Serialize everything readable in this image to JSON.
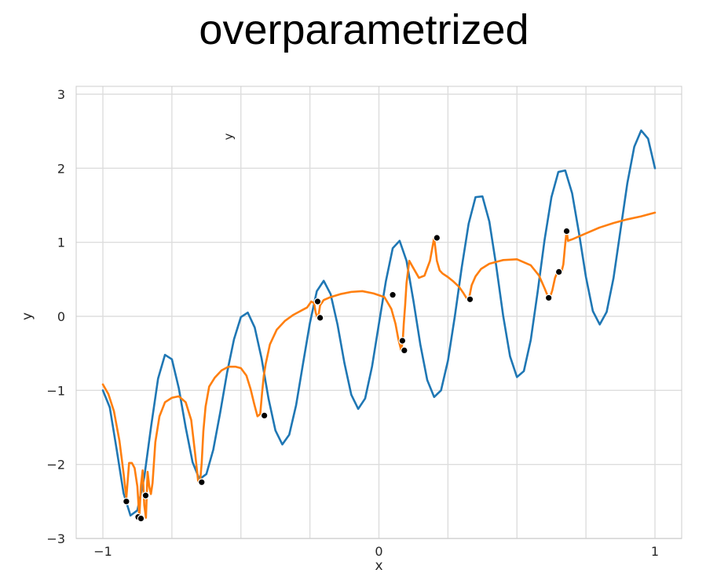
{
  "title": "overparametrized",
  "stray_label": "y",
  "chart_data": {
    "type": "line",
    "xlabel": "x",
    "ylabel": "y",
    "xlim": [
      -1.0,
      1.0
    ],
    "ylim": [
      -3,
      3
    ],
    "xticks": [
      -1,
      0,
      1
    ],
    "xtick_labels": [
      "−1",
      "0",
      "1"
    ],
    "yticks": [
      -3,
      -2,
      -1,
      0,
      1,
      2,
      3
    ],
    "ytick_labels": [
      "−3",
      "−2",
      "−1",
      "0",
      "1",
      "2",
      "3"
    ],
    "grid": true,
    "series": [
      {
        "kind": "line",
        "color": "#1f77b4",
        "x": [
          -1.0,
          -0.975,
          -0.95,
          -0.925,
          -0.9,
          -0.875,
          -0.85,
          -0.825,
          -0.8,
          -0.775,
          -0.75,
          -0.725,
          -0.7,
          -0.675,
          -0.65,
          -0.625,
          -0.6,
          -0.575,
          -0.55,
          -0.525,
          -0.5,
          -0.475,
          -0.45,
          -0.425,
          -0.4,
          -0.375,
          -0.35,
          -0.325,
          -0.3,
          -0.275,
          -0.25,
          -0.225,
          -0.2,
          -0.175,
          -0.15,
          -0.125,
          -0.1,
          -0.075,
          -0.05,
          -0.025,
          0.0,
          0.025,
          0.05,
          0.075,
          0.1,
          0.125,
          0.15,
          0.175,
          0.2,
          0.225,
          0.25,
          0.275,
          0.3,
          0.325,
          0.35,
          0.375,
          0.4,
          0.425,
          0.45,
          0.475,
          0.5,
          0.525,
          0.55,
          0.575,
          0.6,
          0.625,
          0.65,
          0.675,
          0.7,
          0.725,
          0.75,
          0.775,
          0.8,
          0.825,
          0.85,
          0.875,
          0.9,
          0.925,
          0.95,
          0.975,
          1.0
        ],
        "y": [
          -1.0,
          -1.23,
          -1.8,
          -2.39,
          -2.69,
          -2.62,
          -2.17,
          -1.48,
          -0.84,
          -0.52,
          -0.58,
          -0.97,
          -1.5,
          -1.97,
          -2.2,
          -2.13,
          -1.8,
          -1.3,
          -0.76,
          -0.31,
          -0.01,
          0.05,
          -0.15,
          -0.57,
          -1.11,
          -1.54,
          -1.73,
          -1.6,
          -1.2,
          -0.64,
          -0.09,
          0.34,
          0.48,
          0.3,
          -0.11,
          -0.63,
          -1.06,
          -1.25,
          -1.11,
          -0.68,
          -0.1,
          0.47,
          0.92,
          1.02,
          0.75,
          0.21,
          -0.38,
          -0.86,
          -1.09,
          -1.0,
          -0.6,
          0.0,
          0.66,
          1.25,
          1.61,
          1.62,
          1.28,
          0.68,
          0.01,
          -0.54,
          -0.82,
          -0.74,
          -0.32,
          0.33,
          1.03,
          1.61,
          1.95,
          1.97,
          1.66,
          1.12,
          0.53,
          0.07,
          -0.11,
          0.06,
          0.52,
          1.16,
          1.8,
          2.29,
          2.51,
          2.4,
          2.0
        ]
      },
      {
        "kind": "line",
        "color": "#ff7f0e",
        "x": [
          -1.0,
          -0.98,
          -0.96,
          -0.94,
          -0.925,
          -0.915,
          -0.905,
          -0.895,
          -0.885,
          -0.875,
          -0.868,
          -0.862,
          -0.856,
          -0.85,
          -0.844,
          -0.838,
          -0.832,
          -0.826,
          -0.82,
          -0.81,
          -0.795,
          -0.775,
          -0.75,
          -0.725,
          -0.7,
          -0.68,
          -0.665,
          -0.655,
          -0.648,
          -0.642,
          -0.636,
          -0.628,
          -0.615,
          -0.595,
          -0.57,
          -0.545,
          -0.52,
          -0.5,
          -0.48,
          -0.465,
          -0.452,
          -0.44,
          -0.43,
          -0.423,
          -0.417,
          -0.41,
          -0.395,
          -0.37,
          -0.34,
          -0.31,
          -0.28,
          -0.26,
          -0.245,
          -0.235,
          -0.229,
          -0.223,
          -0.218,
          -0.213,
          -0.2,
          -0.175,
          -0.14,
          -0.1,
          -0.06,
          -0.02,
          0.02,
          0.045,
          0.06,
          0.07,
          0.08,
          0.086,
          0.09,
          0.095,
          0.1,
          0.11,
          0.125,
          0.145,
          0.165,
          0.185,
          0.2,
          0.21,
          0.22,
          0.23,
          0.25,
          0.27,
          0.29,
          0.305,
          0.315,
          0.322,
          0.328,
          0.336,
          0.35,
          0.37,
          0.4,
          0.45,
          0.5,
          0.55,
          0.58,
          0.6,
          0.612,
          0.62,
          0.628,
          0.638,
          0.65,
          0.66,
          0.668,
          0.675,
          0.68,
          0.685,
          0.7,
          0.75,
          0.8,
          0.85,
          0.9,
          0.95,
          1.0
        ],
        "y": [
          -0.92,
          -1.05,
          -1.28,
          -1.68,
          -2.12,
          -2.45,
          -1.98,
          -1.98,
          -2.05,
          -2.3,
          -2.72,
          -2.28,
          -2.08,
          -2.55,
          -2.72,
          -2.1,
          -2.3,
          -2.4,
          -2.25,
          -1.7,
          -1.35,
          -1.16,
          -1.1,
          -1.08,
          -1.16,
          -1.4,
          -1.88,
          -2.22,
          -2.24,
          -1.98,
          -1.55,
          -1.22,
          -0.95,
          -0.83,
          -0.73,
          -0.68,
          -0.68,
          -0.7,
          -0.8,
          -0.98,
          -1.18,
          -1.35,
          -1.32,
          -1.02,
          -0.8,
          -0.64,
          -0.38,
          -0.18,
          -0.06,
          0.02,
          0.08,
          0.12,
          0.2,
          0.18,
          0.05,
          -0.02,
          0.03,
          0.15,
          0.22,
          0.26,
          0.3,
          0.33,
          0.34,
          0.31,
          0.26,
          0.1,
          -0.1,
          -0.3,
          -0.45,
          -0.35,
          -0.1,
          0.15,
          0.45,
          0.75,
          0.65,
          0.52,
          0.55,
          0.75,
          1.06,
          0.75,
          0.62,
          0.58,
          0.53,
          0.47,
          0.4,
          0.32,
          0.26,
          0.23,
          0.27,
          0.42,
          0.54,
          0.64,
          0.71,
          0.76,
          0.77,
          0.69,
          0.55,
          0.38,
          0.27,
          0.26,
          0.35,
          0.52,
          0.63,
          0.58,
          0.7,
          0.98,
          1.15,
          1.02,
          1.04,
          1.12,
          1.2,
          1.26,
          1.31,
          1.35,
          1.4
        ]
      },
      {
        "kind": "scatter",
        "color": "#000000",
        "x": [
          -0.915,
          -0.872,
          -0.862,
          -0.845,
          -0.642,
          -0.415,
          -0.222,
          -0.213,
          0.05,
          0.085,
          0.092,
          0.21,
          0.33,
          0.615,
          0.652,
          0.68
        ],
        "y": [
          -2.5,
          -2.71,
          -2.73,
          -2.42,
          -2.24,
          -1.34,
          0.2,
          -0.02,
          0.29,
          -0.33,
          -0.46,
          1.06,
          0.23,
          0.25,
          0.6,
          1.15
        ]
      }
    ]
  }
}
